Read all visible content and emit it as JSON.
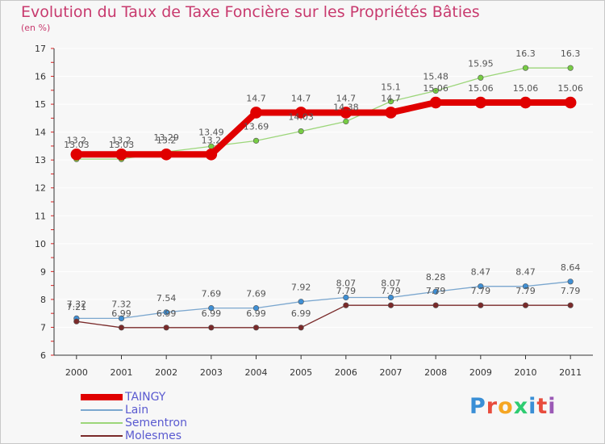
{
  "title": "Evolution du Taux de Taxe Foncière sur les Propriétés Bâties",
  "subtitle": "(en %)",
  "logo": "Proxiti",
  "colors": {
    "title": "#c83a6e",
    "axis": "#333333",
    "grid": "#ffffff",
    "legend_text": "#5a5ad0"
  },
  "chart_data": {
    "type": "line",
    "title": "Evolution du Taux de Taxe Foncière sur les Propriétés Bâties",
    "ylabel": "(en %)",
    "xlabel": "",
    "categories": [
      "2000",
      "2001",
      "2002",
      "2003",
      "2004",
      "2005",
      "2006",
      "2007",
      "2008",
      "2009",
      "2010",
      "2011"
    ],
    "ylim": [
      6,
      17
    ],
    "yticks": [
      6,
      7,
      8,
      9,
      10,
      11,
      12,
      13,
      14,
      15,
      16,
      17
    ],
    "series": [
      {
        "name": "TAINGY",
        "color": "#e00000",
        "markerColor": "#e00000",
        "width": 8,
        "values": [
          13.2,
          13.2,
          13.2,
          13.2,
          14.7,
          14.7,
          14.7,
          14.7,
          15.06,
          15.06,
          15.06,
          15.06
        ],
        "labels": [
          "13.2",
          "13.2",
          "13.2",
          "13.2",
          "14.7",
          "14.7",
          "14.7",
          "14.7",
          "15.06",
          "15.06",
          "15.06",
          "15.06"
        ]
      },
      {
        "name": "Lain",
        "color": "#7ba7cf",
        "markerColor": "#3f8fd4",
        "width": 1.3,
        "values": [
          7.32,
          7.32,
          7.54,
          7.69,
          7.69,
          7.92,
          8.07,
          8.07,
          8.28,
          8.47,
          8.47,
          8.64
        ],
        "labels": [
          "7.32",
          "7.32",
          "7.54",
          "7.69",
          "7.69",
          "7.92",
          "8.07",
          "8.07",
          "8.28",
          "8.47",
          "8.47",
          "8.64"
        ]
      },
      {
        "name": "Sementron",
        "color": "#9cd67a",
        "markerColor": "#77cc44",
        "width": 1.3,
        "values": [
          13.03,
          13.03,
          13.29,
          13.49,
          13.69,
          14.03,
          14.38,
          15.1,
          15.48,
          15.95,
          16.3,
          16.3
        ],
        "labels": [
          "13.03",
          "13.03",
          "13.29",
          "13.49",
          "13.69",
          "14.03",
          "14.38",
          "15.1",
          "15.48",
          "15.95",
          "16.3",
          "16.3"
        ]
      },
      {
        "name": "Molesmes",
        "color": "#7a2a2a",
        "markerColor": "#7a2a2a",
        "width": 1.3,
        "values": [
          7.21,
          6.99,
          6.99,
          6.99,
          6.99,
          6.99,
          7.79,
          7.79,
          7.79,
          7.79,
          7.79,
          7.79
        ],
        "labels": [
          "7.21",
          "6.99",
          "6.99",
          "6.99",
          "6.99",
          "6.99",
          "7.79",
          "7.79",
          "7.79",
          "7.79",
          "7.79",
          "7.79"
        ]
      }
    ],
    "legend_position": "bottom-left"
  }
}
